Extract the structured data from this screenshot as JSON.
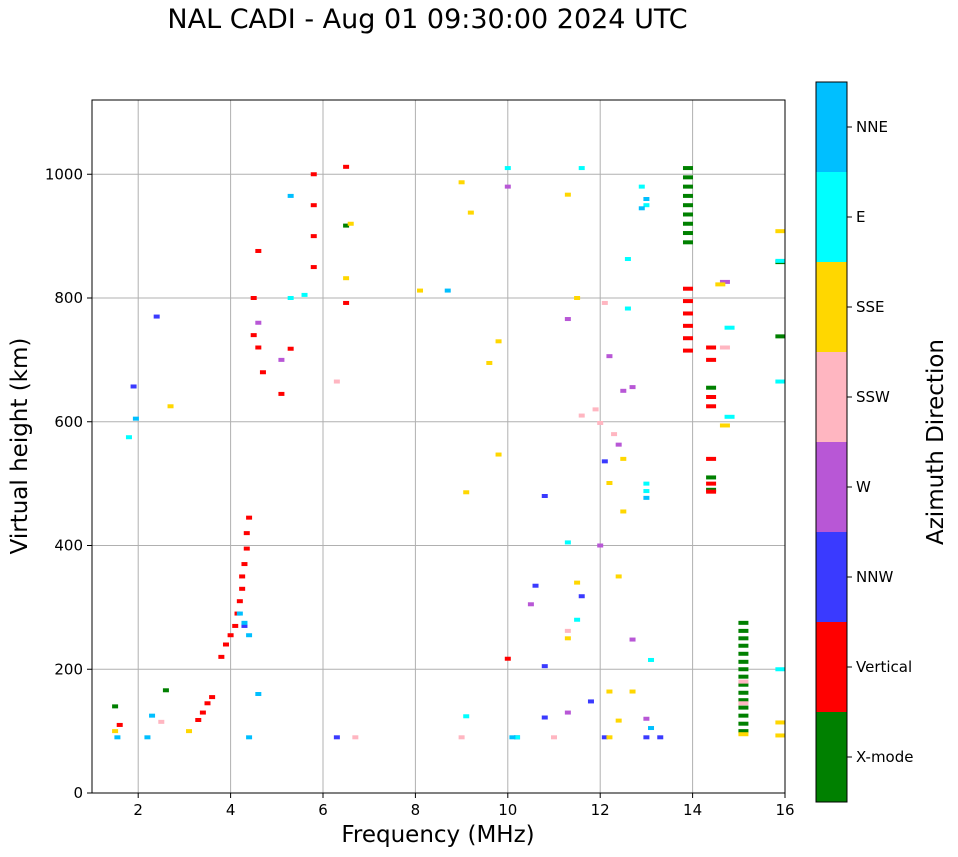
{
  "chart_data": {
    "type": "scatter",
    "title": "NAL CADI - Aug 01 09:30:00 2024 UTC",
    "xlabel": "Frequency (MHz)",
    "ylabel": "Virtual height (km)",
    "xlim": [
      1,
      16
    ],
    "ylim": [
      0,
      1120
    ],
    "xticks": [
      2,
      4,
      6,
      8,
      10,
      12,
      14,
      16
    ],
    "yticks": [
      0,
      200,
      400,
      600,
      800,
      1000
    ],
    "grid": true,
    "colorbar": {
      "label": "Azimuth Direction",
      "categories": [
        {
          "name": "X-mode",
          "color": "#008000"
        },
        {
          "name": "Vertical",
          "color": "#ff0000"
        },
        {
          "name": "NNW",
          "color": "#3a3aff"
        },
        {
          "name": "W",
          "color": "#b857d6"
        },
        {
          "name": "SSW",
          "color": "#ffb6c1"
        },
        {
          "name": "SSE",
          "color": "#ffd700"
        },
        {
          "name": "E",
          "color": "#00ffff"
        },
        {
          "name": "NNE",
          "color": "#00bfff"
        }
      ]
    },
    "series": [
      {
        "name": "X-mode",
        "points": [
          [
            13.9,
            1010
          ],
          [
            13.9,
            995
          ],
          [
            13.9,
            980
          ],
          [
            13.9,
            965
          ],
          [
            13.9,
            950
          ],
          [
            13.9,
            935
          ],
          [
            13.9,
            920
          ],
          [
            13.9,
            905
          ],
          [
            13.9,
            890
          ],
          [
            15.1,
            275
          ],
          [
            15.1,
            262
          ],
          [
            15.1,
            250
          ],
          [
            15.1,
            238
          ],
          [
            15.1,
            225
          ],
          [
            15.1,
            212
          ],
          [
            15.1,
            200
          ],
          [
            15.1,
            188
          ],
          [
            15.1,
            175
          ],
          [
            15.1,
            162
          ],
          [
            15.1,
            150
          ],
          [
            15.1,
            138
          ],
          [
            15.1,
            125
          ],
          [
            15.1,
            112
          ],
          [
            15.1,
            100
          ],
          [
            14.4,
            655
          ],
          [
            14.4,
            510
          ],
          [
            14.4,
            490
          ],
          [
            15.9,
            738
          ],
          [
            15.9,
            858
          ],
          [
            6.5,
            917
          ],
          [
            1.5,
            140
          ],
          [
            2.6,
            166
          ]
        ]
      },
      {
        "name": "Vertical",
        "points": [
          [
            13.9,
            815
          ],
          [
            13.9,
            795
          ],
          [
            13.9,
            775
          ],
          [
            13.9,
            755
          ],
          [
            13.9,
            735
          ],
          [
            13.9,
            715
          ],
          [
            14.4,
            720
          ],
          [
            14.4,
            700
          ],
          [
            14.4,
            640
          ],
          [
            14.4,
            625
          ],
          [
            14.4,
            540
          ],
          [
            14.4,
            500
          ],
          [
            14.4,
            487
          ],
          [
            3.3,
            118
          ],
          [
            3.4,
            130
          ],
          [
            3.5,
            145
          ],
          [
            3.6,
            155
          ],
          [
            3.8,
            220
          ],
          [
            3.9,
            240
          ],
          [
            4.0,
            255
          ],
          [
            4.1,
            270
          ],
          [
            4.15,
            290
          ],
          [
            4.2,
            310
          ],
          [
            4.25,
            330
          ],
          [
            4.25,
            350
          ],
          [
            4.3,
            370
          ],
          [
            4.35,
            395
          ],
          [
            4.35,
            420
          ],
          [
            4.4,
            445
          ],
          [
            4.5,
            800
          ],
          [
            4.5,
            740
          ],
          [
            4.6,
            720
          ],
          [
            5.8,
            1000
          ],
          [
            5.8,
            950
          ],
          [
            5.8,
            900
          ],
          [
            5.8,
            850
          ],
          [
            6.5,
            1012
          ],
          [
            6.5,
            792
          ],
          [
            10,
            217
          ],
          [
            5.3,
            718
          ],
          [
            5.1,
            645
          ],
          [
            4.7,
            680
          ],
          [
            1.6,
            110
          ],
          [
            4.6,
            876
          ]
        ]
      },
      {
        "name": "NNW",
        "points": [
          [
            2.4,
            770
          ],
          [
            1.9,
            657
          ],
          [
            4.3,
            270
          ],
          [
            10.2,
            90
          ],
          [
            10.8,
            480
          ],
          [
            10.6,
            335
          ],
          [
            11.6,
            318
          ],
          [
            12.1,
            536
          ],
          [
            13,
            90
          ],
          [
            13.3,
            90
          ],
          [
            6.3,
            90
          ],
          [
            11.8,
            148
          ],
          [
            10.8,
            122
          ],
          [
            12.1,
            90
          ],
          [
            10.8,
            205
          ]
        ]
      },
      {
        "name": "W",
        "points": [
          [
            10,
            980
          ],
          [
            12.5,
            650
          ],
          [
            12.7,
            656
          ],
          [
            12.4,
            563
          ],
          [
            13,
            120
          ],
          [
            12.2,
            706
          ],
          [
            11.3,
            766
          ],
          [
            12.7,
            248
          ],
          [
            11.3,
            130
          ],
          [
            12,
            400
          ],
          [
            10.5,
            305
          ],
          [
            14.7,
            826
          ],
          [
            4.6,
            760
          ],
          [
            5.1,
            700
          ]
        ]
      },
      {
        "name": "SSW",
        "points": [
          [
            11.6,
            610
          ],
          [
            12,
            598
          ],
          [
            12.3,
            580
          ],
          [
            11.9,
            620
          ],
          [
            12.1,
            792
          ],
          [
            11.3,
            262
          ],
          [
            14.7,
            720
          ],
          [
            15.1,
            180
          ],
          [
            15.1,
            145
          ],
          [
            2.5,
            115
          ],
          [
            6.7,
            90
          ],
          [
            11,
            90
          ],
          [
            9,
            90
          ],
          [
            6.3,
            665
          ]
        ]
      },
      {
        "name": "SSE",
        "points": [
          [
            6.6,
            920
          ],
          [
            6.5,
            832
          ],
          [
            9,
            987
          ],
          [
            9.2,
            938
          ],
          [
            11.3,
            967
          ],
          [
            11.5,
            800
          ],
          [
            12.5,
            540
          ],
          [
            12.2,
            501
          ],
          [
            12.5,
            455
          ],
          [
            12.4,
            350
          ],
          [
            12.2,
            164
          ],
          [
            12.7,
            164
          ],
          [
            12.4,
            117
          ],
          [
            12.2,
            90
          ],
          [
            15.1,
            95
          ],
          [
            15.9,
            908
          ],
          [
            15.9,
            114
          ],
          [
            15.9,
            93
          ],
          [
            14.6,
            822
          ],
          [
            14.7,
            594
          ],
          [
            8.1,
            812
          ],
          [
            9.6,
            695
          ],
          [
            9.8,
            730
          ],
          [
            1.5,
            100
          ],
          [
            2.7,
            625
          ],
          [
            3.1,
            100
          ],
          [
            9.1,
            486
          ],
          [
            9.8,
            547
          ],
          [
            11.5,
            340
          ],
          [
            11.3,
            250
          ]
        ]
      },
      {
        "name": "E",
        "points": [
          [
            12.9,
            980
          ],
          [
            13,
            950
          ],
          [
            12.6,
            863
          ],
          [
            12.6,
            783
          ],
          [
            14.8,
            752
          ],
          [
            14.8,
            608
          ],
          [
            13,
            500
          ],
          [
            13,
            488
          ],
          [
            13.1,
            215
          ],
          [
            9.1,
            124
          ],
          [
            10,
            1010
          ],
          [
            11.6,
            1010
          ],
          [
            15.9,
            665
          ],
          [
            15.9,
            860
          ],
          [
            15.9,
            200
          ],
          [
            5.3,
            800
          ],
          [
            5.6,
            805
          ],
          [
            1.8,
            575
          ],
          [
            10.2,
            90
          ],
          [
            11.3,
            405
          ],
          [
            11.5,
            280
          ]
        ]
      },
      {
        "name": "NNE",
        "points": [
          [
            13,
            960
          ],
          [
            12.9,
            945
          ],
          [
            13,
            477
          ],
          [
            13.1,
            105
          ],
          [
            10.1,
            90
          ],
          [
            4.4,
            255
          ],
          [
            4.3,
            275
          ],
          [
            4.6,
            160
          ],
          [
            5.3,
            965
          ],
          [
            1.55,
            90
          ],
          [
            2.2,
            90
          ],
          [
            4.4,
            90
          ],
          [
            4.2,
            290
          ],
          [
            1.95,
            605
          ],
          [
            2.3,
            125
          ],
          [
            8.7,
            812
          ]
        ]
      }
    ]
  }
}
